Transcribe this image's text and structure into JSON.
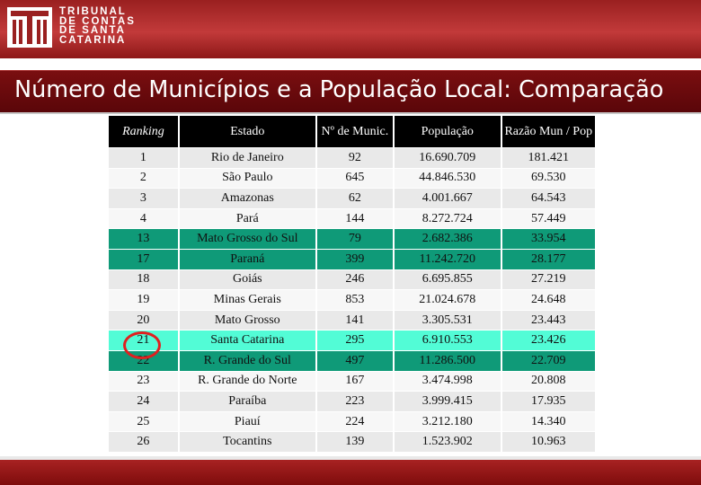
{
  "header": {
    "logo_lines": [
      "TRIBUNAL",
      "DE CONTAS",
      "DE SANTA",
      "CATARINA"
    ],
    "brand_color": "#a82222"
  },
  "slide": {
    "title": "Número de Municípios e a População Local: Comparação"
  },
  "table": {
    "columns": [
      "Ranking",
      "Estado",
      "Nº de Munic.",
      "População",
      "Razão Mun / Pop"
    ],
    "highlight_color": "#52fcd6",
    "group_color": "#0f9a78",
    "rows": [
      {
        "ranking": "1",
        "estado": "Rio de Janeiro",
        "munic": "92",
        "populacao": "16.690.709",
        "razao": "181.421",
        "style": "odd"
      },
      {
        "ranking": "2",
        "estado": "São Paulo",
        "munic": "645",
        "populacao": "44.846.530",
        "razao": "69.530",
        "style": "even"
      },
      {
        "ranking": "3",
        "estado": "Amazonas",
        "munic": "62",
        "populacao": "4.001.667",
        "razao": "64.543",
        "style": "odd"
      },
      {
        "ranking": "4",
        "estado": "Pará",
        "munic": "144",
        "populacao": "8.272.724",
        "razao": "57.449",
        "style": "even"
      },
      {
        "ranking": "13",
        "estado": "Mato Grosso do Sul",
        "munic": "79",
        "populacao": "2.682.386",
        "razao": "33.954",
        "style": "green"
      },
      {
        "ranking": "17",
        "estado": "Paraná",
        "munic": "399",
        "populacao": "11.242.720",
        "razao": "28.177",
        "style": "green"
      },
      {
        "ranking": "18",
        "estado": "Goiás",
        "munic": "246",
        "populacao": "6.695.855",
        "razao": "27.219",
        "style": "odd"
      },
      {
        "ranking": "19",
        "estado": "Minas Gerais",
        "munic": "853",
        "populacao": "21.024.678",
        "razao": "24.648",
        "style": "even"
      },
      {
        "ranking": "20",
        "estado": "Mato Grosso",
        "munic": "141",
        "populacao": "3.305.531",
        "razao": "23.443",
        "style": "odd"
      },
      {
        "ranking": "21",
        "estado": "Santa Catarina",
        "munic": "295",
        "populacao": "6.910.553",
        "razao": "23.426",
        "style": "hl"
      },
      {
        "ranking": "22",
        "estado": "R. Grande do Sul",
        "munic": "497",
        "populacao": "11.286.500",
        "razao": "22.709",
        "style": "green"
      },
      {
        "ranking": "23",
        "estado": "R. Grande do Norte",
        "munic": "167",
        "populacao": "3.474.998",
        "razao": "20.808",
        "style": "even"
      },
      {
        "ranking": "24",
        "estado": "Paraíba",
        "munic": "223",
        "populacao": "3.999.415",
        "razao": "17.935",
        "style": "odd"
      },
      {
        "ranking": "25",
        "estado": "Piauí",
        "munic": "224",
        "populacao": "3.212.180",
        "razao": "14.340",
        "style": "even"
      },
      {
        "ranking": "26",
        "estado": "Tocantins",
        "munic": "139",
        "populacao": "1.523.902",
        "razao": "10.963",
        "style": "odd"
      }
    ]
  }
}
